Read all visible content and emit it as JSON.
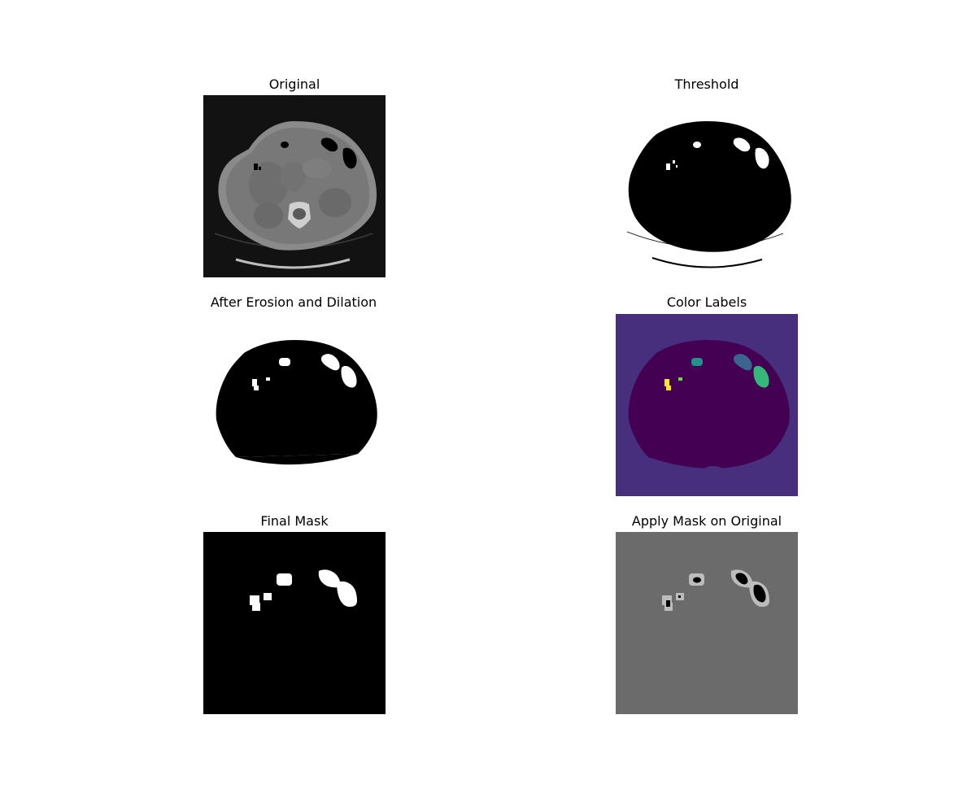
{
  "panels": {
    "original": {
      "title": "Original"
    },
    "threshold": {
      "title": "Threshold"
    },
    "erosion_dilation": {
      "title": "After Erosion and Dilation"
    },
    "color_labels": {
      "title": "Color Labels"
    },
    "final_mask": {
      "title": "Final Mask"
    },
    "apply_mask": {
      "title": "Apply Mask on Original"
    }
  },
  "colors": {
    "page_background": "#ffffff",
    "ct_background": "#121212",
    "ct_body": "#7d7d7d",
    "mask_background_gray": "#6b6b6b",
    "label_background": "#472f7d",
    "label_body": "#440154",
    "label_teal": "#21918c",
    "label_blue": "#3b648f",
    "label_green": "#35b779",
    "label_lime": "#7ad151",
    "label_yellow": "#fde725"
  }
}
